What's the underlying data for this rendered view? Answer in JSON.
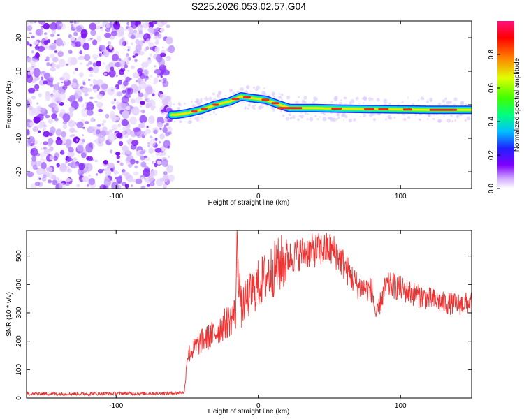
{
  "title": "S225.2026.053.02.57.G04",
  "colors": {
    "snr_line": "#ee3333",
    "frame": "#000000",
    "background": "#ffffff"
  },
  "chart_data": [
    {
      "type": "heatmap",
      "name": "spectrogram",
      "xlabel": "Height of straight line (km)",
      "ylabel": "Frequency (Hz)",
      "xlim": [
        -163,
        150
      ],
      "ylim": [
        -25,
        25
      ],
      "xticks": [
        -100,
        0,
        100
      ],
      "xtick_labels": [
        "-100",
        "0",
        "100"
      ],
      "yticks": [
        -20,
        -10,
        0,
        10,
        20
      ],
      "ytick_labels": [
        "-20",
        "-10",
        "0",
        "10",
        "20"
      ],
      "noise_region_x": [
        -163,
        -61
      ],
      "ridge": {
        "x": [
          -61,
          -58,
          -50,
          -40,
          -30,
          -20,
          -12,
          -5,
          5,
          15,
          22,
          40,
          60,
          80,
          100,
          120,
          150
        ],
        "y": [
          -3,
          -3,
          -2.5,
          -1.5,
          0,
          1,
          2.5,
          2,
          1.5,
          0,
          -1,
          -1,
          -1.2,
          -1.3,
          -1.4,
          -1.5,
          -1.5
        ]
      },
      "colorbar": {
        "label": "Normalized spectral amplitude",
        "range": [
          0,
          1
        ],
        "ticks": [
          0.0,
          0.2,
          0.4,
          0.6,
          0.8
        ],
        "tick_labels": [
          "0.0",
          "0.2",
          "0.4",
          "0.6",
          "0.8"
        ]
      }
    },
    {
      "type": "line",
      "name": "snr",
      "xlabel": "Height of straight line (km)",
      "ylabel": "SNR (10 * v/v)",
      "xlim": [
        -163,
        150
      ],
      "ylim": [
        0,
        590
      ],
      "xticks": [
        -100,
        0,
        100
      ],
      "xtick_labels": [
        "-100",
        "0",
        "100"
      ],
      "yticks": [
        0,
        100,
        200,
        300,
        400,
        500
      ],
      "ytick_labels": [
        "0",
        "100",
        "200",
        "300",
        "400",
        "500"
      ],
      "series": [
        {
          "name": "SNR",
          "x": [
            -163,
            -140,
            -120,
            -100,
            -80,
            -60,
            -52,
            -50,
            -45,
            -40,
            -35,
            -30,
            -25,
            -20,
            -16,
            -15,
            -12,
            -10,
            -5,
            0,
            5,
            10,
            15,
            20,
            30,
            40,
            50,
            55,
            60,
            65,
            70,
            75,
            80,
            83,
            86,
            90,
            95,
            100,
            110,
            120,
            130,
            140,
            150
          ],
          "y": [
            15,
            15,
            15,
            16,
            16,
            17,
            20,
            150,
            175,
            200,
            215,
            230,
            255,
            275,
            300,
            540,
            310,
            335,
            370,
            400,
            425,
            450,
            470,
            490,
            510,
            520,
            525,
            510,
            470,
            430,
            395,
            385,
            380,
            280,
            340,
            395,
            395,
            385,
            365,
            350,
            335,
            330,
            335
          ]
        }
      ]
    }
  ]
}
